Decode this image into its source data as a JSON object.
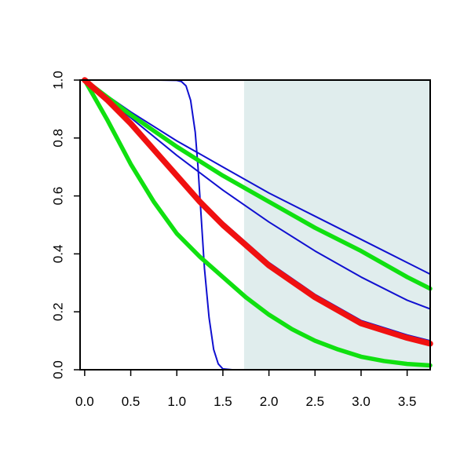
{
  "chart_data": {
    "type": "line",
    "xlim": [
      -0.05,
      3.75
    ],
    "ylim": [
      0,
      1
    ],
    "x_ticks": [
      0.0,
      0.5,
      1.0,
      1.5,
      2.0,
      2.5,
      3.0,
      3.5
    ],
    "x_tick_labels": [
      "0.0",
      "0.5",
      "1.0",
      "1.5",
      "2.0",
      "2.5",
      "3.0",
      "3.5"
    ],
    "y_ticks": [
      0.0,
      0.2,
      0.4,
      0.6,
      0.8,
      1.0
    ],
    "y_tick_labels": [
      "0.0",
      "0.2",
      "0.4",
      "0.6",
      "0.8",
      "1.0"
    ],
    "grid": false,
    "shaded_region": {
      "x_from": 1.73,
      "x_to": 3.75,
      "color": "#e0eded"
    },
    "colors": {
      "blue": "#1010d0",
      "green": "#10e010",
      "red": "#f01010",
      "axis": "#000000"
    },
    "series": [
      {
        "color": "#1010d0",
        "weight": "thin",
        "x": [
          0,
          0.8,
          1.0,
          1.05,
          1.1,
          1.15,
          1.2,
          1.23,
          1.25,
          1.28,
          1.3,
          1.35,
          1.4,
          1.45,
          1.5,
          1.6,
          2.0,
          3.75
        ],
        "y": [
          1,
          1,
          0.999,
          0.995,
          0.98,
          0.93,
          0.82,
          0.7,
          0.6,
          0.45,
          0.35,
          0.18,
          0.07,
          0.02,
          0.003,
          0,
          0,
          0
        ]
      },
      {
        "color": "#1010d0",
        "weight": "thin",
        "x": [
          0,
          0.5,
          1.0,
          1.5,
          2.0,
          2.5,
          3.0,
          3.5,
          3.75
        ],
        "y": [
          1,
          0.89,
          0.79,
          0.7,
          0.61,
          0.53,
          0.45,
          0.37,
          0.33
        ]
      },
      {
        "color": "#1010d0",
        "weight": "thin",
        "x": [
          0,
          0.5,
          1.0,
          1.5,
          2.0,
          2.5,
          3.0,
          3.5,
          3.75
        ],
        "y": [
          1,
          0.87,
          0.74,
          0.62,
          0.51,
          0.41,
          0.32,
          0.24,
          0.21
        ]
      },
      {
        "color": "#1010d0",
        "weight": "thin",
        "x": [
          0,
          0.25,
          0.5,
          0.75,
          1.0,
          1.25,
          1.5,
          1.75,
          2.0,
          2.5,
          3.0,
          3.5,
          3.75
        ],
        "y": [
          1,
          0.94,
          0.86,
          0.77,
          0.68,
          0.59,
          0.51,
          0.44,
          0.37,
          0.26,
          0.17,
          0.12,
          0.1
        ]
      },
      {
        "color": "#10e010",
        "weight": "thick",
        "x": [
          0,
          0.5,
          1.0,
          1.5,
          2.0,
          2.5,
          3.0,
          3.5,
          3.75
        ],
        "y": [
          1,
          0.88,
          0.77,
          0.67,
          0.58,
          0.49,
          0.41,
          0.32,
          0.28
        ]
      },
      {
        "color": "#10e010",
        "weight": "thick",
        "x": [
          0,
          0.25,
          0.5,
          0.75,
          1.0,
          1.25,
          1.5,
          1.75,
          2.0,
          2.25,
          2.5,
          2.75,
          3.0,
          3.25,
          3.5,
          3.75
        ],
        "y": [
          1,
          0.86,
          0.71,
          0.58,
          0.47,
          0.39,
          0.32,
          0.25,
          0.19,
          0.14,
          0.1,
          0.07,
          0.045,
          0.03,
          0.02,
          0.015
        ]
      },
      {
        "color": "#f01010",
        "weight": "thicker",
        "x": [
          0,
          0.25,
          0.5,
          0.75,
          1.0,
          1.25,
          1.5,
          1.75,
          2.0,
          2.5,
          3.0,
          3.5,
          3.75
        ],
        "y": [
          1,
          0.93,
          0.85,
          0.76,
          0.67,
          0.58,
          0.5,
          0.43,
          0.36,
          0.25,
          0.16,
          0.11,
          0.09
        ]
      }
    ]
  }
}
